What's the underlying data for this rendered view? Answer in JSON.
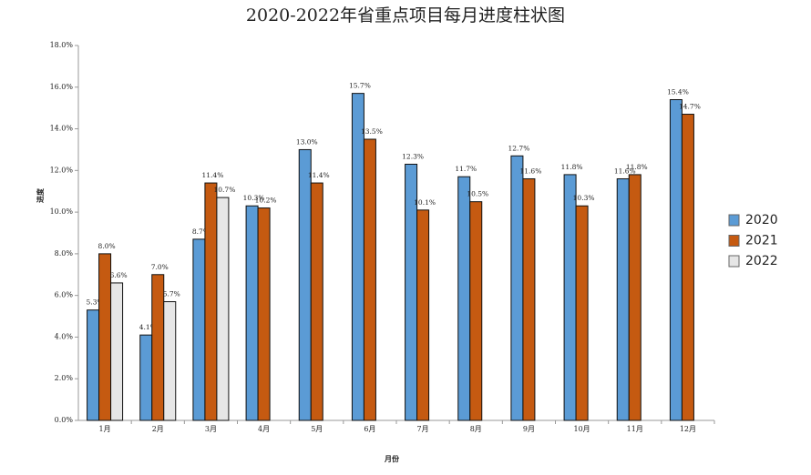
{
  "chart_data": {
    "type": "bar",
    "title": "2020-2022年省重点项目每月进度柱状图",
    "x_label": "月份",
    "y_label": "进度",
    "categories": [
      "1月",
      "2月",
      "3月",
      "4月",
      "5月",
      "6月",
      "7月",
      "8月",
      "9月",
      "10月",
      "11月",
      "12月"
    ],
    "series": [
      {
        "name": "2020",
        "color": "#5b9bd5",
        "values": [
          5.3,
          4.1,
          8.7,
          10.3,
          13.0,
          15.7,
          12.3,
          11.7,
          12.7,
          11.8,
          11.6,
          15.4
        ],
        "value_labels": [
          "5.3%",
          "4.1%",
          "8.7%",
          "10.3%",
          "13.0%",
          "15.7%",
          "12.3%",
          "11.7%",
          "12.7%",
          "11.8%",
          "11.6%",
          "15.4%"
        ]
      },
      {
        "name": "2021",
        "color": "#c55a11",
        "values": [
          8.0,
          7.0,
          11.4,
          10.2,
          11.4,
          13.5,
          10.1,
          10.5,
          11.6,
          10.3,
          11.8,
          14.7
        ],
        "value_labels": [
          "8.0%",
          "7.0%",
          "11.4%",
          "10.2%",
          "11.4%",
          "13.5%",
          "10.1%",
          "10.5%",
          "11.6%",
          "10.3%",
          "11.8%",
          "14.7%"
        ]
      },
      {
        "name": "2022",
        "color": "#e6e6e6",
        "values": [
          6.6,
          5.7,
          10.7,
          null,
          null,
          null,
          null,
          null,
          null,
          null,
          null,
          null
        ],
        "value_labels": [
          "6.6%",
          "5.7%",
          "10.7%",
          null,
          null,
          null,
          null,
          null,
          null,
          null,
          null,
          null
        ]
      }
    ],
    "ylim": [
      0,
      18
    ],
    "yticks": [
      {
        "value": 0,
        "label": "0.0%"
      },
      {
        "value": 2,
        "label": "2.0%"
      },
      {
        "value": 4,
        "label": "4.0%"
      },
      {
        "value": 6,
        "label": "6.0%"
      },
      {
        "value": 8,
        "label": "8.0%"
      },
      {
        "value": 10,
        "label": "10.0%"
      },
      {
        "value": 12,
        "label": "12.0%"
      },
      {
        "value": 14,
        "label": "14.0%"
      },
      {
        "value": 16,
        "label": "16.0%"
      },
      {
        "value": 18,
        "label": "18.0%"
      }
    ],
    "legend": "right"
  }
}
